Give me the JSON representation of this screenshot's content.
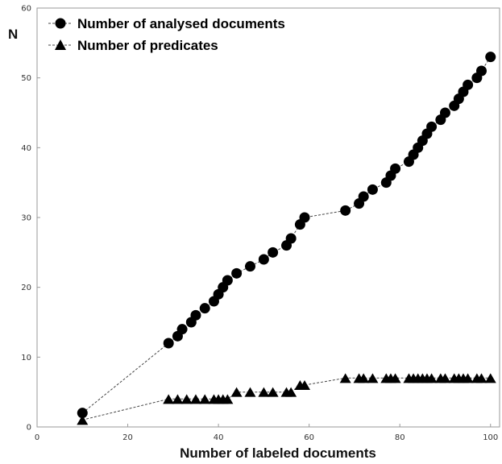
{
  "chart_data": {
    "type": "line",
    "title": "",
    "xlabel": "Number of labeled documents",
    "ylabel": "N",
    "xlim": [
      0,
      102
    ],
    "ylim": [
      0,
      60
    ],
    "xticks": [
      0,
      20,
      40,
      60,
      80,
      100
    ],
    "yticks": [
      0,
      10,
      20,
      30,
      40,
      50,
      60
    ],
    "grid": false,
    "legend_position": "top-left",
    "colors": {
      "marker": "#000000",
      "connector": "#444444",
      "frame": "#999999"
    },
    "series": [
      {
        "name": "Number of analysed documents",
        "marker": "circle",
        "points": [
          [
            10,
            2
          ],
          [
            29,
            12
          ],
          [
            31,
            13
          ],
          [
            32,
            14
          ],
          [
            34,
            15
          ],
          [
            35,
            16
          ],
          [
            37,
            17
          ],
          [
            39,
            18
          ],
          [
            40,
            19
          ],
          [
            41,
            20
          ],
          [
            42,
            21
          ],
          [
            44,
            22
          ],
          [
            47,
            23
          ],
          [
            50,
            24
          ],
          [
            52,
            25
          ],
          [
            55,
            26
          ],
          [
            56,
            27
          ],
          [
            58,
            29
          ],
          [
            59,
            30
          ],
          [
            68,
            31
          ],
          [
            71,
            32
          ],
          [
            72,
            33
          ],
          [
            74,
            34
          ],
          [
            77,
            35
          ],
          [
            78,
            36
          ],
          [
            79,
            37
          ],
          [
            82,
            38
          ],
          [
            83,
            39
          ],
          [
            84,
            40
          ],
          [
            85,
            41
          ],
          [
            86,
            42
          ],
          [
            87,
            43
          ],
          [
            89,
            44
          ],
          [
            90,
            45
          ],
          [
            92,
            46
          ],
          [
            93,
            47
          ],
          [
            94,
            48
          ],
          [
            95,
            49
          ],
          [
            97,
            50
          ],
          [
            98,
            51
          ],
          [
            100,
            53
          ]
        ]
      },
      {
        "name": "Number of predicates",
        "marker": "triangle",
        "points": [
          [
            10,
            1
          ],
          [
            29,
            4
          ],
          [
            31,
            4
          ],
          [
            33,
            4
          ],
          [
            35,
            4
          ],
          [
            37,
            4
          ],
          [
            39,
            4
          ],
          [
            40,
            4
          ],
          [
            41,
            4
          ],
          [
            42,
            4
          ],
          [
            44,
            5
          ],
          [
            47,
            5
          ],
          [
            50,
            5
          ],
          [
            52,
            5
          ],
          [
            55,
            5
          ],
          [
            56,
            5
          ],
          [
            58,
            6
          ],
          [
            59,
            6
          ],
          [
            68,
            7
          ],
          [
            71,
            7
          ],
          [
            72,
            7
          ],
          [
            74,
            7
          ],
          [
            77,
            7
          ],
          [
            78,
            7
          ],
          [
            79,
            7
          ],
          [
            82,
            7
          ],
          [
            83,
            7
          ],
          [
            84,
            7
          ],
          [
            85,
            7
          ],
          [
            86,
            7
          ],
          [
            87,
            7
          ],
          [
            89,
            7
          ],
          [
            90,
            7
          ],
          [
            92,
            7
          ],
          [
            93,
            7
          ],
          [
            94,
            7
          ],
          [
            95,
            7
          ],
          [
            97,
            7
          ],
          [
            98,
            7
          ],
          [
            100,
            7
          ]
        ]
      }
    ]
  }
}
